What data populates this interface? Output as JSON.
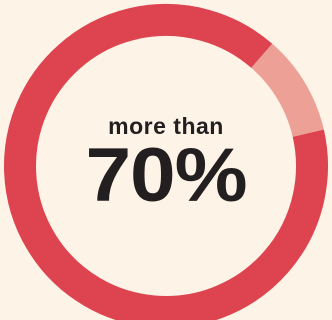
{
  "chart_data": {
    "type": "pie",
    "variant": "donut",
    "slices": [
      {
        "value": 90,
        "color": "#dd4450"
      },
      {
        "value": 10,
        "color": "#eda095"
      }
    ],
    "center_text": {
      "prefix": "more than",
      "value": "70%"
    }
  }
}
